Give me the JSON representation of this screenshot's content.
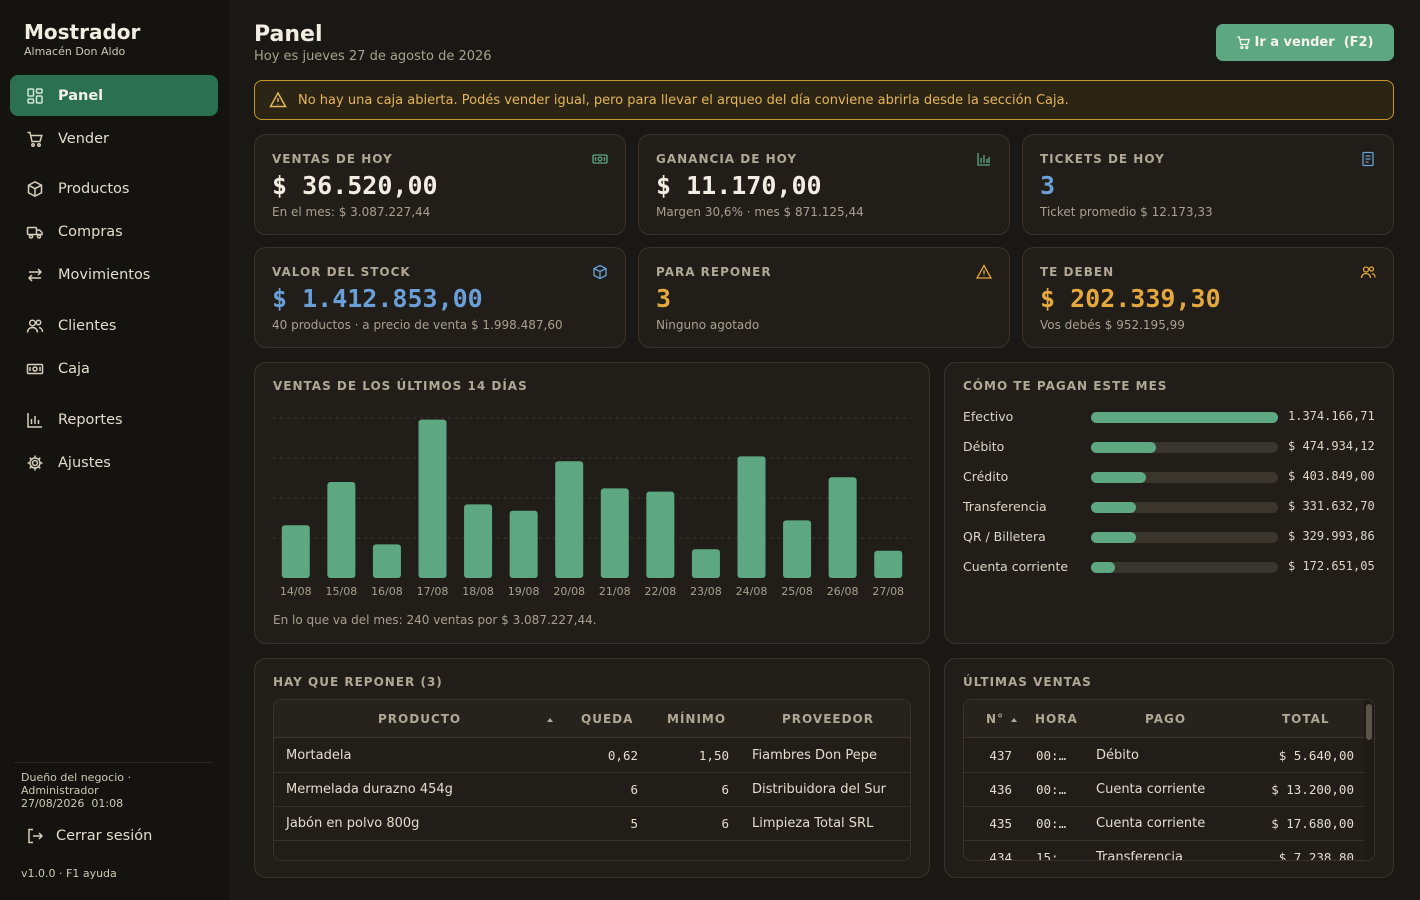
{
  "brand": {
    "title": "Mostrador",
    "subtitle": "Almacén Don Aldo"
  },
  "nav": [
    {
      "label": "Panel",
      "icon": "dashboard-icon",
      "active": true
    },
    {
      "label": "Vender",
      "icon": "cart-icon"
    },
    {
      "label": "Productos",
      "icon": "box-icon"
    },
    {
      "label": "Compras",
      "icon": "truck-icon"
    },
    {
      "label": "Movimientos",
      "icon": "arrows-icon"
    },
    {
      "label": "Clientes",
      "icon": "users-icon"
    },
    {
      "label": "Caja",
      "icon": "cash-icon"
    },
    {
      "label": "Reportes",
      "icon": "bar-chart-icon"
    },
    {
      "label": "Ajustes",
      "icon": "gear-icon"
    }
  ],
  "user": {
    "role": "Dueño del negocio",
    "name": "Administrador",
    "datetime": "27/08/2026  01:08"
  },
  "logout_label": "Cerrar sesión",
  "footer": {
    "version": "v1.0.0",
    "help": "F1 ayuda"
  },
  "header": {
    "title": "Panel",
    "date": "Hoy es jueves 27 de agosto de 2026",
    "sell_button": "Ir a vender  (F2)"
  },
  "alert": "No hay una caja abierta. Podés vender igual, pero para llevar el arqueo del día conviene abrirla desde la sección Caja.",
  "stats": [
    {
      "label": "VENTAS DE HOY",
      "value": "$ 36.520,00",
      "sub": "En el mes: $ 3.087.227,44",
      "icon": "cash-icon",
      "color": "#f2ede3",
      "icon_color": "#5da882"
    },
    {
      "label": "GANANCIA DE HOY",
      "value": "$ 11.170,00",
      "sub": "Margen 30,6% · mes $ 871.125,44",
      "icon": "bar-chart-icon",
      "color": "#f2ede3",
      "icon_color": "#5da882"
    },
    {
      "label": "TICKETS DE HOY",
      "value": "3",
      "sub": "Ticket promedio $ 12.173,33",
      "icon": "receipt-icon",
      "color": "#6a9fd8",
      "icon_color": "#6a9fd8"
    },
    {
      "label": "VALOR DEL STOCK",
      "value": "$ 1.412.853,00",
      "sub": "40 productos · a precio de venta $ 1.998.487,60",
      "icon": "box-icon",
      "color": "#6a9fd8",
      "icon_color": "#6a9fd8"
    },
    {
      "label": "PARA REPONER",
      "value": "3",
      "sub": "Ninguno agotado",
      "icon": "warning-icon",
      "color": "#e4a83e",
      "icon_color": "#e4a83e"
    },
    {
      "label": "TE DEBEN",
      "value": "$ 202.339,30",
      "sub": "Vos debés $ 952.195,99",
      "icon": "users-icon",
      "color": "#e4a83e",
      "icon_color": "#e4a83e"
    }
  ],
  "chart": {
    "title": "VENTAS DE LOS ÚLTIMOS 14 DÍAS",
    "note": "En lo que va del mes: 240 ventas por $ 3.087.227,44."
  },
  "chart_data": {
    "type": "bar",
    "title": "VENTAS DE LOS ÚLTIMOS 14 DÍAS",
    "categories": [
      "14/08",
      "15/08",
      "16/08",
      "17/08",
      "18/08",
      "19/08",
      "20/08",
      "21/08",
      "22/08",
      "23/08",
      "24/08",
      "25/08",
      "26/08",
      "27/08"
    ],
    "values": [
      33,
      60,
      21,
      99,
      46,
      42,
      73,
      56,
      54,
      18,
      76,
      36,
      63,
      17
    ],
    "ylim": [
      0,
      100
    ],
    "grid": true,
    "color": "#5da882"
  },
  "payments": {
    "title": "CÓMO TE PAGAN ESTE MES",
    "items": [
      {
        "name": "Efectivo",
        "amount": "1.374.166,71",
        "fraction": 1.0
      },
      {
        "name": "Débito",
        "amount": "$ 474.934,12",
        "fraction": 0.346
      },
      {
        "name": "Crédito",
        "amount": "$ 403.849,00",
        "fraction": 0.294
      },
      {
        "name": "Transferencia",
        "amount": "$ 331.632,70",
        "fraction": 0.241
      },
      {
        "name": "QR / Billetera",
        "amount": "$ 329.993,86",
        "fraction": 0.24
      },
      {
        "name": "Cuenta corriente",
        "amount": "$ 172.651,05",
        "fraction": 0.126
      }
    ]
  },
  "restock": {
    "title": "HAY QUE REPONER (3)",
    "headers": {
      "product": "PRODUCTO",
      "left": "QUEDA",
      "min": "MÍNIMO",
      "supplier": "PROVEEDOR"
    },
    "rows": [
      {
        "product": "Mortadela",
        "left": "0,62",
        "min": "1,50",
        "supplier": "Fiambres Don Pepe"
      },
      {
        "product": "Mermelada durazno 454g",
        "left": "6",
        "min": "6",
        "supplier": "Distribuidora del Sur"
      },
      {
        "product": "Jabón en polvo 800g",
        "left": "5",
        "min": "6",
        "supplier": "Limpieza Total SRL"
      }
    ]
  },
  "sales": {
    "title": "ÚLTIMAS VENTAS",
    "headers": {
      "num": "N°",
      "time": "HORA",
      "pay": "PAGO",
      "total": "TOTAL"
    },
    "rows": [
      {
        "num": "437",
        "time": "00:…",
        "pay": "Débito",
        "total": "$ 5.640,00"
      },
      {
        "num": "436",
        "time": "00:…",
        "pay": "Cuenta corriente",
        "total": "$ 13.200,00"
      },
      {
        "num": "435",
        "time": "00:…",
        "pay": "Cuenta corriente",
        "total": "$ 17.680,00"
      },
      {
        "num": "434",
        "time": "15:…",
        "pay": "Transferencia",
        "total": "$ 7.238,80"
      }
    ]
  }
}
